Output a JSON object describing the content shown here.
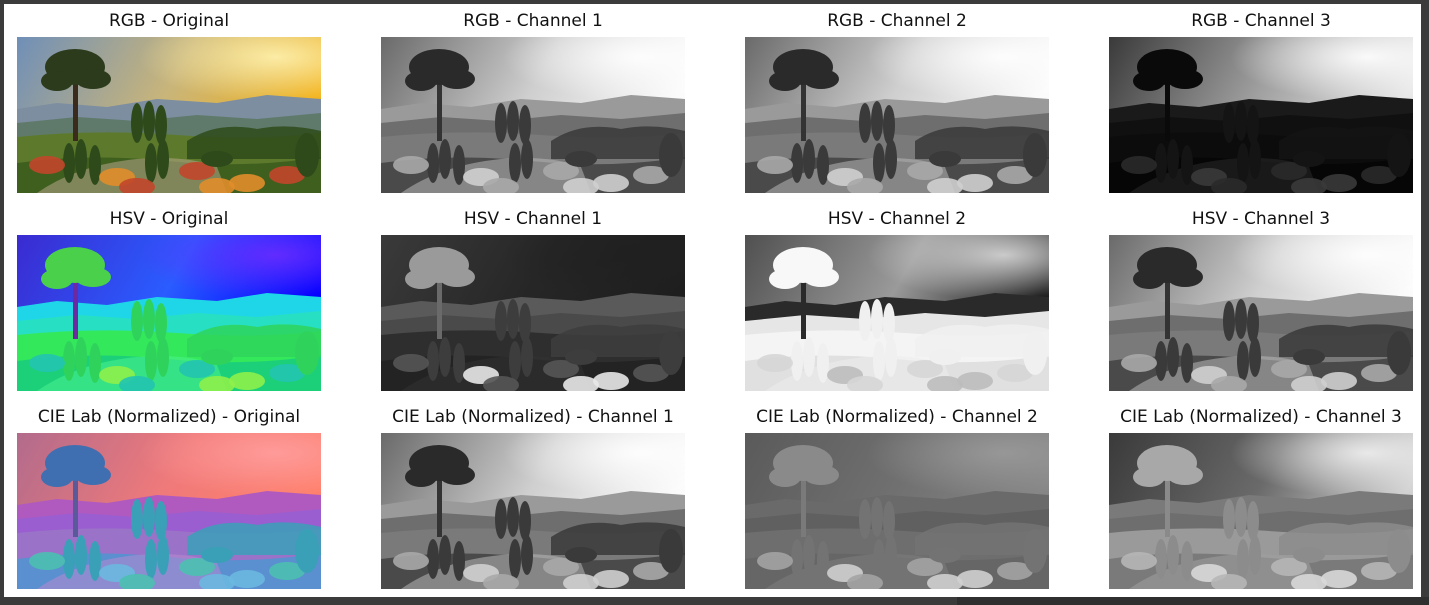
{
  "figure": {
    "rows": [
      {
        "row_name": "rgb",
        "panels": [
          {
            "title": "RGB - Original",
            "variant": "rgb-original"
          },
          {
            "title": "RGB - Channel 1",
            "variant": "gray-bright"
          },
          {
            "title": "RGB - Channel 2",
            "variant": "gray-bright"
          },
          {
            "title": "RGB - Channel 3",
            "variant": "gray-dark"
          }
        ]
      },
      {
        "row_name": "hsv",
        "panels": [
          {
            "title": "HSV - Original",
            "variant": "hsv-original"
          },
          {
            "title": "HSV - Channel 1",
            "variant": "gray-hue"
          },
          {
            "title": "HSV - Channel 2",
            "variant": "gray-sat"
          },
          {
            "title": "HSV - Channel 3",
            "variant": "gray-bright"
          }
        ]
      },
      {
        "row_name": "lab",
        "panels": [
          {
            "title": "CIE Lab (Normalized) - Original",
            "variant": "lab-original"
          },
          {
            "title": "CIE Lab (Normalized) - Channel 1",
            "variant": "gray-bright"
          },
          {
            "title": "CIE Lab (Normalized) - Channel 2",
            "variant": "gray-mid"
          },
          {
            "title": "CIE Lab (Normalized) - Channel 3",
            "variant": "gray-mid2"
          }
        ]
      }
    ]
  }
}
